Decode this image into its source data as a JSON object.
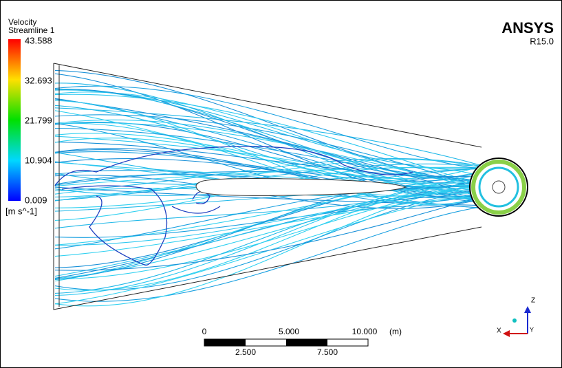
{
  "legend": {
    "title": "Velocity",
    "subtitle": "Streamline 1",
    "ticks": [
      "43.588",
      "32.693",
      "21.799",
      "10.904",
      "0.009"
    ],
    "unit": "[m s^-1]"
  },
  "brand": {
    "name": "ANSYS",
    "version": "R15.0"
  },
  "scale_bar": {
    "top_labels": [
      "0",
      "5.000",
      "10.000"
    ],
    "unit": "(m)",
    "bottom_labels": [
      "2.500",
      "7.500"
    ]
  },
  "triad": {
    "z": "Z",
    "x": "X",
    "y": "Y"
  }
}
